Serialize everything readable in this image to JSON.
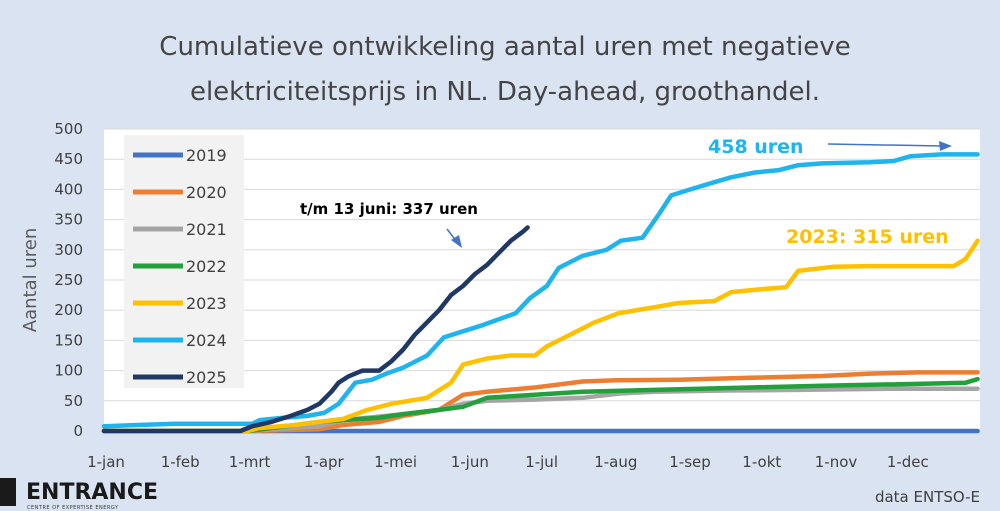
{
  "colors": {
    "background": "#dae3f2",
    "plot_bg": "#ffffff",
    "grid": "#d9d9d9",
    "text": "#404040",
    "accent_2024": "#1fb4ee",
    "accent_2023": "#ffc000",
    "dark_2025": "#203864"
  },
  "chart_data": {
    "type": "line",
    "title": "Cumulatieve ontwikkeling aantal uren met negatieve elektriciteitsprijs in NL. Day-ahead, groothandel.",
    "title_lines": [
      "Cumulatieve ontwikkeling aantal uren met negatieve",
      "elektriciteitsprijs in NL. Day-ahead, groothandel."
    ],
    "ylabel": "Aantal uren",
    "xlabel": "",
    "ylim": [
      0,
      500
    ],
    "yticks": [
      0,
      50,
      100,
      150,
      200,
      250,
      300,
      350,
      400,
      450,
      500
    ],
    "xlim_days": [
      0,
      366
    ],
    "xticks": [
      {
        "label": "1-jan",
        "day": 0
      },
      {
        "label": "1-feb",
        "day": 31
      },
      {
        "label": "1-mrt",
        "day": 60
      },
      {
        "label": "1-apr",
        "day": 91
      },
      {
        "label": "1-mei",
        "day": 121
      },
      {
        "label": "1-jun",
        "day": 152
      },
      {
        "label": "1-jul",
        "day": 182
      },
      {
        "label": "1-aug",
        "day": 213
      },
      {
        "label": "1-sep",
        "day": 244
      },
      {
        "label": "1-okt",
        "day": 274
      },
      {
        "label": "1-nov",
        "day": 305
      },
      {
        "label": "1-dec",
        "day": 335
      }
    ],
    "grid": true,
    "legend_position": "top-left",
    "series": [
      {
        "name": "2019",
        "color": "#4472c4",
        "points": [
          [
            0,
            0
          ],
          [
            365,
            0
          ]
        ]
      },
      {
        "name": "2020",
        "color": "#ed7d31",
        "points": [
          [
            0,
            0
          ],
          [
            60,
            0
          ],
          [
            90,
            3
          ],
          [
            100,
            10
          ],
          [
            115,
            15
          ],
          [
            125,
            25
          ],
          [
            140,
            35
          ],
          [
            150,
            60
          ],
          [
            160,
            65
          ],
          [
            180,
            72
          ],
          [
            200,
            82
          ],
          [
            214,
            84
          ],
          [
            240,
            85
          ],
          [
            270,
            88
          ],
          [
            300,
            91
          ],
          [
            320,
            95
          ],
          [
            340,
            97
          ],
          [
            365,
            97
          ]
        ]
      },
      {
        "name": "2021",
        "color": "#a5a5a5",
        "points": [
          [
            0,
            0
          ],
          [
            60,
            0
          ],
          [
            90,
            8
          ],
          [
            100,
            18
          ],
          [
            110,
            22
          ],
          [
            125,
            28
          ],
          [
            140,
            35
          ],
          [
            150,
            45
          ],
          [
            160,
            50
          ],
          [
            180,
            52
          ],
          [
            200,
            55
          ],
          [
            215,
            62
          ],
          [
            230,
            65
          ],
          [
            260,
            67
          ],
          [
            290,
            68
          ],
          [
            330,
            70
          ],
          [
            365,
            70
          ]
        ]
      },
      {
        "name": "2022",
        "color": "#21a03c",
        "points": [
          [
            0,
            0
          ],
          [
            60,
            0
          ],
          [
            80,
            10
          ],
          [
            90,
            15
          ],
          [
            100,
            18
          ],
          [
            115,
            22
          ],
          [
            125,
            28
          ],
          [
            140,
            35
          ],
          [
            150,
            40
          ],
          [
            160,
            55
          ],
          [
            180,
            60
          ],
          [
            200,
            65
          ],
          [
            230,
            68
          ],
          [
            270,
            72
          ],
          [
            300,
            75
          ],
          [
            340,
            78
          ],
          [
            360,
            80
          ],
          [
            365,
            86
          ]
        ]
      },
      {
        "name": "2023",
        "color": "#ffc000",
        "points": [
          [
            0,
            0
          ],
          [
            60,
            0
          ],
          [
            65,
            5
          ],
          [
            80,
            10
          ],
          [
            100,
            20
          ],
          [
            110,
            35
          ],
          [
            120,
            45
          ],
          [
            135,
            55
          ],
          [
            145,
            80
          ],
          [
            150,
            110
          ],
          [
            160,
            120
          ],
          [
            170,
            125
          ],
          [
            180,
            125
          ],
          [
            185,
            140
          ],
          [
            195,
            160
          ],
          [
            205,
            180
          ],
          [
            215,
            195
          ],
          [
            230,
            205
          ],
          [
            240,
            212
          ],
          [
            255,
            215
          ],
          [
            262,
            230
          ],
          [
            275,
            235
          ],
          [
            285,
            238
          ],
          [
            290,
            265
          ],
          [
            305,
            272
          ],
          [
            320,
            273
          ],
          [
            355,
            273
          ],
          [
            360,
            285
          ],
          [
            365,
            315
          ]
        ]
      },
      {
        "name": "2024",
        "color": "#1fb4ee",
        "points": [
          [
            0,
            8
          ],
          [
            30,
            12
          ],
          [
            62,
            12
          ],
          [
            65,
            18
          ],
          [
            75,
            22
          ],
          [
            85,
            25
          ],
          [
            92,
            30
          ],
          [
            98,
            45
          ],
          [
            105,
            80
          ],
          [
            112,
            85
          ],
          [
            118,
            95
          ],
          [
            125,
            105
          ],
          [
            135,
            125
          ],
          [
            142,
            155
          ],
          [
            150,
            165
          ],
          [
            158,
            175
          ],
          [
            165,
            185
          ],
          [
            172,
            195
          ],
          [
            178,
            220
          ],
          [
            185,
            240
          ],
          [
            190,
            270
          ],
          [
            200,
            290
          ],
          [
            210,
            300
          ],
          [
            216,
            315
          ],
          [
            225,
            320
          ],
          [
            232,
            360
          ],
          [
            237,
            390
          ],
          [
            245,
            400
          ],
          [
            255,
            412
          ],
          [
            262,
            420
          ],
          [
            272,
            428
          ],
          [
            282,
            432
          ],
          [
            290,
            440
          ],
          [
            300,
            443
          ],
          [
            320,
            445
          ],
          [
            330,
            447
          ],
          [
            337,
            455
          ],
          [
            350,
            458
          ],
          [
            365,
            458
          ]
        ]
      },
      {
        "name": "2025",
        "color": "#203864",
        "points": [
          [
            0,
            0
          ],
          [
            57,
            0
          ],
          [
            62,
            8
          ],
          [
            70,
            15
          ],
          [
            78,
            25
          ],
          [
            85,
            35
          ],
          [
            90,
            45
          ],
          [
            95,
            65
          ],
          [
            98,
            80
          ],
          [
            102,
            90
          ],
          [
            108,
            100
          ],
          [
            115,
            100
          ],
          [
            120,
            115
          ],
          [
            125,
            135
          ],
          [
            130,
            160
          ],
          [
            135,
            180
          ],
          [
            140,
            200
          ],
          [
            145,
            225
          ],
          [
            150,
            240
          ],
          [
            155,
            260
          ],
          [
            160,
            275
          ],
          [
            165,
            295
          ],
          [
            170,
            315
          ],
          [
            175,
            330
          ],
          [
            177,
            337
          ]
        ]
      }
    ],
    "annotations": [
      {
        "text": "458 uren",
        "color": "#1fb4ee"
      },
      {
        "text": "2023: 315 uren",
        "color": "#ffc000"
      },
      {
        "text": "t/m 13 juni: 337 uren",
        "color": "#000000"
      }
    ]
  },
  "footer": {
    "brand_name": "ENTRANCE",
    "brand_tagline": "CENTRE OF EXPERTISE ENERGY",
    "source": "data ENTSO-E"
  }
}
